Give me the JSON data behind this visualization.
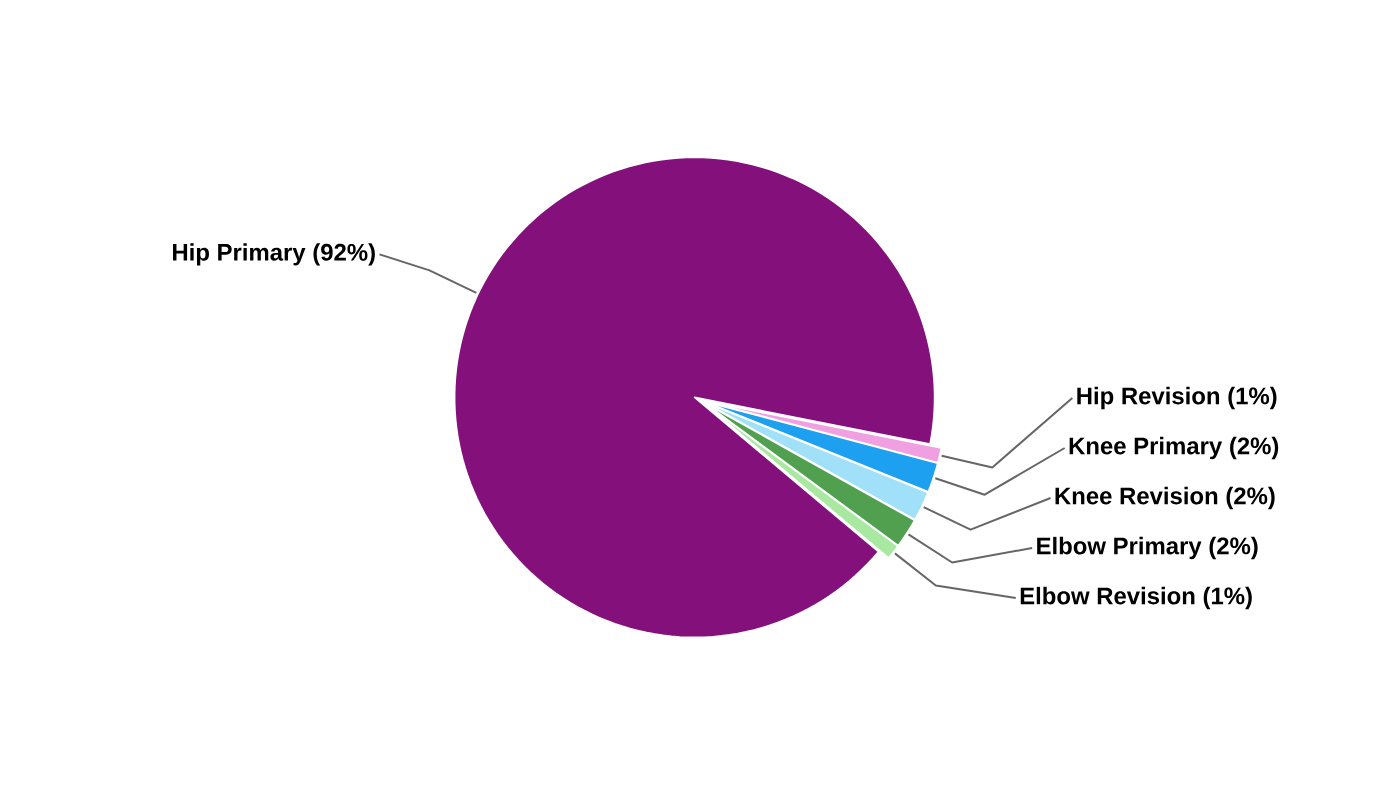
{
  "chart_data": {
    "type": "pie",
    "categories": [
      "Hip Primary",
      "Hip Revision",
      "Knee Primary",
      "Knee Revision",
      "Elbow Primary",
      "Elbow Revision"
    ],
    "values": [
      92,
      1,
      2,
      2,
      2,
      1
    ],
    "colors": [
      "#84107c",
      "#f0a0e0",
      "#1ea0f0",
      "#a0e0f8",
      "#50a050",
      "#a8e8a0"
    ],
    "value_labels": [
      "(92%)",
      "(1%)",
      "(2%)",
      "(2%)",
      "(2%)",
      "(1%)"
    ]
  }
}
